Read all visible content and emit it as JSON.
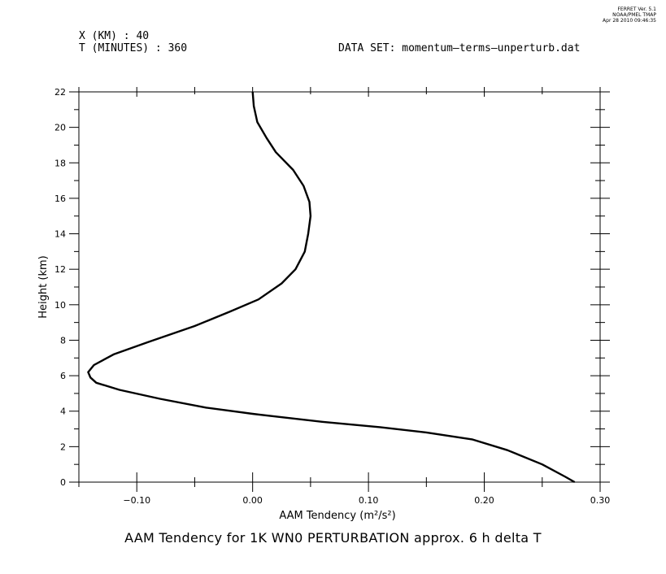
{
  "header": {
    "x_label": "X (KM) : 40",
    "t_label": "T (MINUTES) : 360",
    "dataset": "DATA SET: momentum—terms—unperturb.dat"
  },
  "ferret": {
    "line1": "FERRET Ver. 5.1",
    "line2": "NOAA/PMEL TMAP",
    "line3": "Apr 28 2010 09:46:35"
  },
  "caption": "AAM Tendency for 1K WN0 PERTURBATION approx. 6 h delta T",
  "chart_data": {
    "type": "line",
    "xlabel": "AAM Tendency",
    "xlabel_units": "(m²/s²)",
    "ylabel": "Height (km)",
    "xlim": [
      -0.15,
      0.3
    ],
    "ylim": [
      0,
      22
    ],
    "x_ticks": [
      -0.1,
      0.0,
      0.1,
      0.2,
      0.3
    ],
    "x_tick_labels": [
      "−0.10",
      "0.00",
      "0.10",
      "0.20",
      "0.30"
    ],
    "y_ticks": [
      0,
      2,
      4,
      6,
      8,
      10,
      12,
      14,
      16,
      18,
      20,
      22
    ],
    "y_tick_labels": [
      "0",
      "2",
      "4",
      "6",
      "8",
      "10",
      "12",
      "14",
      "16",
      "18",
      "20",
      "22"
    ],
    "grid": false,
    "series": [
      {
        "x": [
          0.278,
          0.27,
          0.25,
          0.22,
          0.19,
          0.15,
          0.11,
          0.06,
          0.02,
          0.0,
          -0.04,
          -0.08,
          -0.115,
          -0.135,
          -0.14,
          -0.142,
          -0.137,
          -0.12,
          -0.09,
          -0.05,
          -0.02,
          0.005,
          0.025,
          0.037,
          0.045,
          0.048,
          0.05,
          0.049,
          0.044,
          0.035,
          0.02,
          0.012,
          0.004,
          0.001,
          0.0
        ],
        "y": [
          0.0,
          0.3,
          1.0,
          1.8,
          2.4,
          2.8,
          3.1,
          3.4,
          3.7,
          3.85,
          4.2,
          4.7,
          5.2,
          5.6,
          5.9,
          6.2,
          6.6,
          7.2,
          7.9,
          8.8,
          9.6,
          10.3,
          11.2,
          12.0,
          13.0,
          14.0,
          15.0,
          15.8,
          16.7,
          17.6,
          18.6,
          19.4,
          20.3,
          21.2,
          22.0
        ]
      }
    ]
  }
}
